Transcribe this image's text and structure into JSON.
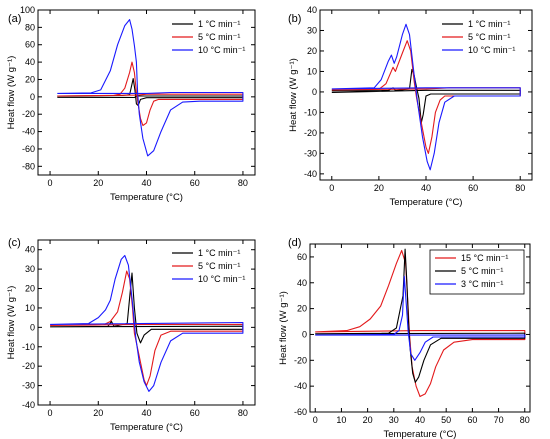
{
  "chart_data": [
    {
      "type": "line",
      "panel": "(a)",
      "xlabel": "Temperature (°C)",
      "ylabel": "Heat flow (W g⁻¹)",
      "xlim": [
        -5,
        85
      ],
      "ylim": [
        -90,
        100
      ],
      "xticks": [
        0,
        20,
        40,
        60,
        80
      ],
      "yticks": [
        -80,
        -60,
        -40,
        -20,
        0,
        20,
        40,
        60,
        80,
        100
      ],
      "legend_position": "top-right",
      "series": [
        {
          "name": "1 °C min⁻¹",
          "color": "#000000",
          "points": [
            [
              3,
              1
            ],
            [
              30,
              1.5
            ],
            [
              33,
              2.5
            ],
            [
              34.5,
              21
            ],
            [
              35.2,
              8
            ],
            [
              35.8,
              -8
            ],
            [
              36.5,
              -10
            ],
            [
              37.5,
              -3
            ],
            [
              40,
              -1
            ],
            [
              80,
              -1
            ],
            [
              80,
              1
            ],
            [
              36,
              1
            ],
            [
              35,
              -0.8
            ],
            [
              3,
              -0.5
            ]
          ]
        },
        {
          "name": "5 °C min⁻¹",
          "color": "#e31a1c",
          "points": [
            [
              3,
              1
            ],
            [
              26,
              1.5
            ],
            [
              29,
              3
            ],
            [
              31,
              10
            ],
            [
              33,
              28
            ],
            [
              34,
              40
            ],
            [
              35,
              28
            ],
            [
              35.8,
              5
            ],
            [
              36.5,
              -8
            ],
            [
              37.5,
              -25
            ],
            [
              38.5,
              -33
            ],
            [
              40,
              -30
            ],
            [
              41.5,
              -15
            ],
            [
              43,
              -5
            ],
            [
              45,
              -3
            ],
            [
              80,
              -3
            ],
            [
              80,
              3
            ],
            [
              40,
              3
            ],
            [
              36.5,
              2
            ],
            [
              3,
              1
            ]
          ]
        },
        {
          "name": "10 °C min⁻¹",
          "color": "#1a1aff",
          "points": [
            [
              3,
              4
            ],
            [
              17,
              4.5
            ],
            [
              21,
              8
            ],
            [
              25,
              30
            ],
            [
              28,
              60
            ],
            [
              31,
              82
            ],
            [
              33,
              89
            ],
            [
              34,
              78
            ],
            [
              35,
              59
            ],
            [
              35.8,
              40
            ],
            [
              36.3,
              5
            ],
            [
              37,
              -20
            ],
            [
              38.5,
              -48
            ],
            [
              40.5,
              -68
            ],
            [
              43,
              -62
            ],
            [
              46,
              -40
            ],
            [
              50,
              -15
            ],
            [
              55,
              -6
            ],
            [
              62,
              -5
            ],
            [
              80,
              -5
            ],
            [
              80,
              5
            ],
            [
              50,
              5
            ],
            [
              40,
              4
            ],
            [
              30,
              4
            ],
            [
              5,
              4
            ],
            [
              3,
              4
            ]
          ]
        }
      ]
    },
    {
      "type": "line",
      "panel": "(b)",
      "xlabel": "Temperature (°C)",
      "ylabel": "Heat flow (W g⁻¹)",
      "xlim": [
        -5,
        85
      ],
      "ylim": [
        -43,
        40
      ],
      "xticks": [
        0,
        20,
        40,
        60,
        80
      ],
      "yticks": [
        -40,
        -30,
        -20,
        -10,
        0,
        10,
        20,
        30,
        40
      ],
      "legend_position": "top-right",
      "series": [
        {
          "name": "1 °C min⁻¹",
          "color": "#000000",
          "points": [
            [
              0,
              0.5
            ],
            [
              24,
              0.7
            ],
            [
              26,
              2
            ],
            [
              27,
              0.7
            ],
            [
              33,
              1.5
            ],
            [
              34,
              11
            ],
            [
              35,
              8
            ],
            [
              36,
              2
            ],
            [
              37,
              -3
            ],
            [
              38,
              -15
            ],
            [
              38.8,
              -11
            ],
            [
              40,
              -2
            ],
            [
              42,
              -1
            ],
            [
              80,
              -1
            ],
            [
              80,
              0.8
            ],
            [
              40,
              0.8
            ],
            [
              0,
              -0.3
            ]
          ]
        },
        {
          "name": "5 °C min⁻¹",
          "color": "#e31a1c",
          "points": [
            [
              0,
              1
            ],
            [
              20,
              1.3
            ],
            [
              23,
              4
            ],
            [
              26,
              12
            ],
            [
              27,
              10
            ],
            [
              28,
              13
            ],
            [
              30,
              19
            ],
            [
              32,
              25
            ],
            [
              33.5,
              20
            ],
            [
              35,
              5
            ],
            [
              36,
              -3
            ],
            [
              38,
              -15
            ],
            [
              40,
              -27
            ],
            [
              41,
              -30
            ],
            [
              42.5,
              -22
            ],
            [
              44,
              -10
            ],
            [
              46,
              -4
            ],
            [
              48,
              -2
            ],
            [
              80,
              -2
            ],
            [
              80,
              2
            ],
            [
              50,
              2
            ],
            [
              40,
              1.5
            ],
            [
              0,
              1
            ]
          ]
        },
        {
          "name": "10 °C min⁻¹",
          "color": "#1a1aff",
          "points": [
            [
              0,
              1.5
            ],
            [
              18,
              2
            ],
            [
              21,
              6
            ],
            [
              24,
              15
            ],
            [
              25.3,
              18
            ],
            [
              26.5,
              14
            ],
            [
              27.5,
              17
            ],
            [
              30,
              28
            ],
            [
              31.5,
              33
            ],
            [
              33,
              28
            ],
            [
              35,
              8
            ],
            [
              36.5,
              -6
            ],
            [
              38.5,
              -22
            ],
            [
              40.5,
              -34
            ],
            [
              41.8,
              -38
            ],
            [
              43.5,
              -30
            ],
            [
              45.5,
              -15
            ],
            [
              48,
              -5
            ],
            [
              52,
              -2
            ],
            [
              80,
              -2
            ],
            [
              80,
              2
            ],
            [
              40,
              2
            ],
            [
              0,
              1.5
            ]
          ]
        }
      ]
    },
    {
      "type": "line",
      "panel": "(c)",
      "xlabel": "Temperature (°C)",
      "ylabel": "Heat flow (W g⁻¹)",
      "xlim": [
        -5,
        85
      ],
      "ylim": [
        -40,
        45
      ],
      "xticks": [
        0,
        20,
        40,
        60,
        80
      ],
      "yticks": [
        -40,
        -30,
        -20,
        -10,
        0,
        10,
        20,
        30,
        40
      ],
      "legend_position": "top-right",
      "series": [
        {
          "name": "1 °C min⁻¹",
          "color": "#000000",
          "points": [
            [
              0,
              0.3
            ],
            [
              24,
              0.5
            ],
            [
              25.5,
              3
            ],
            [
              26.5,
              0.5
            ],
            [
              32,
              2
            ],
            [
              33,
              15
            ],
            [
              34,
              28
            ],
            [
              35,
              10
            ],
            [
              36,
              -3
            ],
            [
              37.5,
              -8
            ],
            [
              39,
              -4
            ],
            [
              42,
              -1
            ],
            [
              80,
              -1
            ],
            [
              80,
              0.6
            ],
            [
              0,
              0.3
            ]
          ]
        },
        {
          "name": "5 °C min⁻¹",
          "color": "#e31a1c",
          "points": [
            [
              0,
              1
            ],
            [
              22,
              1.2
            ],
            [
              25,
              3
            ],
            [
              28,
              8
            ],
            [
              30,
              18
            ],
            [
              31.8,
              29
            ],
            [
              33,
              25
            ],
            [
              34.2,
              10
            ],
            [
              35,
              -3
            ],
            [
              37,
              -15
            ],
            [
              39,
              -27
            ],
            [
              40,
              -30
            ],
            [
              41.5,
              -25
            ],
            [
              43.5,
              -12
            ],
            [
              46,
              -4
            ],
            [
              50,
              -2
            ],
            [
              80,
              -2
            ],
            [
              80,
              1.5
            ],
            [
              40,
              1.5
            ],
            [
              0,
              1
            ]
          ]
        },
        {
          "name": "10 °C min⁻¹",
          "color": "#1a1aff",
          "points": [
            [
              0,
              1.5
            ],
            [
              16,
              2
            ],
            [
              20,
              5
            ],
            [
              23,
              9
            ],
            [
              25,
              14
            ],
            [
              27,
              25
            ],
            [
              29.5,
              35
            ],
            [
              31,
              37
            ],
            [
              32.5,
              32
            ],
            [
              34,
              15
            ],
            [
              35.5,
              -5
            ],
            [
              37,
              -18
            ],
            [
              39,
              -28
            ],
            [
              41,
              -33
            ],
            [
              43,
              -30
            ],
            [
              46,
              -18
            ],
            [
              50,
              -7
            ],
            [
              55,
              -3
            ],
            [
              80,
              -3
            ],
            [
              80,
              2.5
            ],
            [
              0,
              1.5
            ]
          ]
        }
      ]
    },
    {
      "type": "line",
      "panel": "(d)",
      "xlabel": "Temperature (°C)",
      "ylabel": "Heat flow (W g⁻¹)",
      "xlim": [
        -2,
        82
      ],
      "ylim": [
        -60,
        70
      ],
      "xticks": [
        0,
        10,
        20,
        30,
        40,
        50,
        60,
        70,
        80
      ],
      "yticks": [
        -60,
        -40,
        -20,
        0,
        20,
        40,
        60
      ],
      "legend_position": "top-center",
      "series": [
        {
          "name": "15 °C min⁻¹",
          "color": "#e31a1c",
          "points": [
            [
              0,
              2
            ],
            [
              12,
              3
            ],
            [
              17,
              6
            ],
            [
              21,
              12
            ],
            [
              25,
              22
            ],
            [
              28,
              38
            ],
            [
              31,
              55
            ],
            [
              33,
              65
            ],
            [
              34.5,
              55
            ],
            [
              35.5,
              20
            ],
            [
              36,
              0
            ],
            [
              37,
              -25
            ],
            [
              38.5,
              -40
            ],
            [
              40,
              -48
            ],
            [
              42,
              -46
            ],
            [
              44,
              -38
            ],
            [
              46,
              -25
            ],
            [
              49,
              -12
            ],
            [
              53,
              -6
            ],
            [
              60,
              -4
            ],
            [
              80,
              -4
            ],
            [
              80,
              3
            ],
            [
              40,
              3
            ],
            [
              0,
              2
            ]
          ]
        },
        {
          "name": "5 °C min⁻¹",
          "color": "#000000",
          "points": [
            [
              0,
              0.5
            ],
            [
              28,
              1
            ],
            [
              31,
              5
            ],
            [
              33.5,
              30
            ],
            [
              34.3,
              66
            ],
            [
              35,
              40
            ],
            [
              35.6,
              10
            ],
            [
              36.2,
              -10
            ],
            [
              37.2,
              -30
            ],
            [
              38.2,
              -37
            ],
            [
              39.5,
              -33
            ],
            [
              41.5,
              -20
            ],
            [
              44,
              -8
            ],
            [
              48,
              -3
            ],
            [
              80,
              -3
            ],
            [
              80,
              1
            ],
            [
              0,
              0.5
            ]
          ]
        },
        {
          "name": "3 °C min⁻¹",
          "color": "#1a1aff",
          "points": [
            [
              0,
              -0.5
            ],
            [
              30,
              0
            ],
            [
              32,
              3
            ],
            [
              33.3,
              15
            ],
            [
              34,
              45
            ],
            [
              34.8,
              22
            ],
            [
              35.5,
              2
            ],
            [
              36.5,
              -15
            ],
            [
              38,
              -20
            ],
            [
              40,
              -14
            ],
            [
              42,
              -6
            ],
            [
              45,
              -2
            ],
            [
              80,
              -2
            ],
            [
              80,
              -0.5
            ],
            [
              0,
              -0.5
            ]
          ]
        }
      ]
    }
  ]
}
